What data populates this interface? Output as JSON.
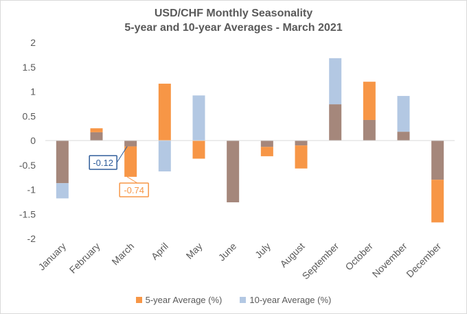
{
  "chart_data": {
    "type": "bar",
    "title": "USD/CHF Monthly Seasonality",
    "subtitle": "5-year and 10-year Averages - March 2021",
    "categories": [
      "January",
      "February",
      "March",
      "April",
      "May",
      "June",
      "July",
      "August",
      "September",
      "October",
      "November",
      "December"
    ],
    "series": [
      {
        "name": "5-year Average (%)",
        "color": "#f79646",
        "values": [
          -0.87,
          0.25,
          -0.74,
          1.16,
          -0.37,
          -1.26,
          -0.32,
          -0.57,
          0.74,
          1.2,
          0.18,
          -1.67
        ]
      },
      {
        "name": "10-year Average (%)",
        "color": "#b3c8e3",
        "values": [
          -1.18,
          0.17,
          -0.12,
          -0.63,
          0.92,
          -1.26,
          -0.13,
          -0.1,
          1.68,
          0.42,
          0.91,
          -0.8
        ]
      }
    ],
    "overlap_color": "#a5877b",
    "yticks": [
      "2",
      "1.5",
      "1",
      "0.5",
      "0",
      "-0.5",
      "-1",
      "-1.5",
      "-2"
    ],
    "ylim": [
      -2,
      2
    ],
    "grid": false,
    "legend_position": "bottom",
    "annotations": [
      {
        "label": "-0.12",
        "category": "March",
        "series": "10-year Average (%)",
        "color": "#2e5c9a"
      },
      {
        "label": "-0.74",
        "category": "March",
        "series": "5-year Average (%)",
        "color": "#f79646"
      }
    ]
  }
}
